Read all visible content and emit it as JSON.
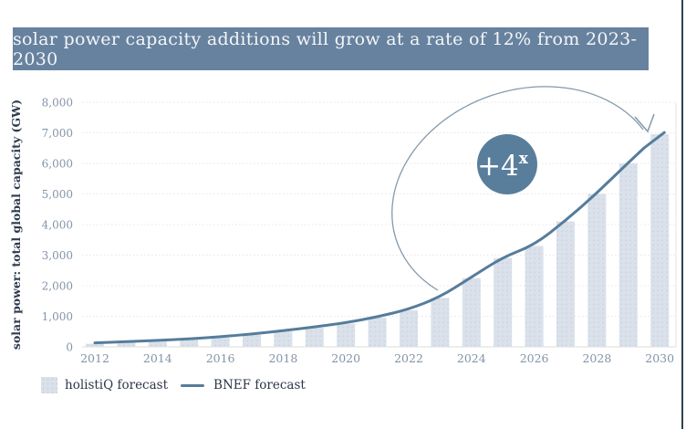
{
  "banner": {
    "text": "solar power capacity additions will grow at a rate of 12% from 2023-2030",
    "bg_color": "#67829e",
    "text_color": "#f4f6f9"
  },
  "legend": {
    "items": [
      {
        "label": "holistiQ forecast",
        "swatch": "bar-swatch"
      },
      {
        "label": "BNEF forecast",
        "swatch": "line-swatch"
      }
    ]
  },
  "chart": {
    "y_axis_title": "solar power: total global capacity (GW)",
    "y_ticks": [
      "0",
      "1,000",
      "2,000",
      "3,000",
      "4,000",
      "5,000",
      "6,000",
      "7,000",
      "8,000"
    ],
    "x_ticks": [
      "2012",
      "2014",
      "2016",
      "2018",
      "2020",
      "2022",
      "2024",
      "2026",
      "2028",
      "2030"
    ],
    "annotation_badge": {
      "text_main": "+4",
      "text_sup": "x"
    },
    "colors": {
      "bar_fill": "#dae1ea",
      "bar_dot": "#c7d2df",
      "line": "#567c9b",
      "grid": "#eae6e4",
      "baseline": "#dfdcda",
      "plot_edge": "#e6e6e6",
      "tick_text": "#8493a8",
      "axis_title_text": "#2e3a4d",
      "badge_bg": "#597e9c",
      "badge_text": "#ffffff",
      "arc_stroke": "#8399ad",
      "right_border": "#31424c"
    }
  },
  "chart_data": {
    "type": "bar",
    "title": "solar power capacity additions will grow at a rate of 12% from 2023-2030",
    "categories": [
      2012,
      2013,
      2014,
      2015,
      2016,
      2017,
      2018,
      2019,
      2020,
      2021,
      2022,
      2023,
      2024,
      2025,
      2026,
      2027,
      2028,
      2029,
      2030
    ],
    "series": [
      {
        "name": "holistiQ forecast",
        "render": "bar",
        "values": [
          100,
          140,
          180,
          230,
          300,
          390,
          500,
          620,
          760,
          950,
          1200,
          1600,
          2250,
          2900,
          3300,
          4100,
          5000,
          6000,
          6950
        ]
      },
      {
        "name": "BNEF forecast",
        "render": "line",
        "values": [
          100,
          140,
          180,
          230,
          300,
          390,
          500,
          620,
          760,
          950,
          1200,
          1600,
          2250,
          2900,
          3300,
          4100,
          5000,
          6000,
          6950
        ]
      }
    ],
    "xlabel": "",
    "ylabel": "solar power: total global capacity (GW)",
    "ylim": [
      0,
      8000
    ],
    "ytick_step": 1000,
    "xtick_step_years": 2,
    "grid": "horizontal-dotted",
    "legend_position": "bottom-left",
    "annotation": {
      "badge_text": "+4^x",
      "arrow": "open arc circling the forecast growth, arrowhead pointing at the 2030 end of the BNEF line"
    }
  }
}
